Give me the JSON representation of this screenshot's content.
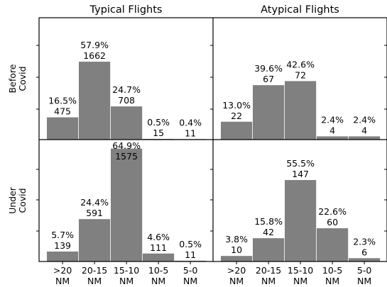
{
  "chart_data": {
    "type": "bar",
    "column_titles": [
      "Typical Flights",
      "Atypical Flights"
    ],
    "row_labels": [
      [
        "Before",
        "Covid"
      ],
      [
        "Under",
        "Covid"
      ]
    ],
    "categories": [
      [
        ">20",
        "NM"
      ],
      [
        "20-15",
        "NM"
      ],
      [
        "15-10",
        "NM"
      ],
      [
        "10-5",
        "NM"
      ],
      [
        "5-0",
        "NM"
      ]
    ],
    "bar_color": "#808080",
    "panels": [
      {
        "column": "Typical Flights",
        "row": "Before Covid",
        "counts": [
          475,
          1662,
          708,
          15,
          11
        ],
        "percents": [
          "16.5%",
          "57.9%",
          "24.7%",
          "0.5%",
          "0.4%"
        ],
        "ylim": [
          0,
          2600
        ]
      },
      {
        "column": "Atypical Flights",
        "row": "Before Covid",
        "counts": [
          22,
          67,
          72,
          4,
          4
        ],
        "percents": [
          "13.0%",
          "39.6%",
          "42.6%",
          "2.4%",
          "2.4%"
        ],
        "ylim": [
          0,
          150
        ]
      },
      {
        "column": "Typical Flights",
        "row": "Under Covid",
        "counts": [
          139,
          591,
          1575,
          111,
          11
        ],
        "percents": [
          "5.7%",
          "24.4%",
          "64.9%",
          "4.6%",
          "0.5%"
        ],
        "ylim": [
          0,
          1700
        ]
      },
      {
        "column": "Atypical Flights",
        "row": "Under Covid",
        "counts": [
          10,
          42,
          147,
          60,
          6
        ],
        "percents": [
          "3.8%",
          "15.8%",
          "55.5%",
          "22.6%",
          "2.3%"
        ],
        "ylim": [
          0,
          220
        ]
      }
    ],
    "grid": false,
    "legend": "none"
  }
}
